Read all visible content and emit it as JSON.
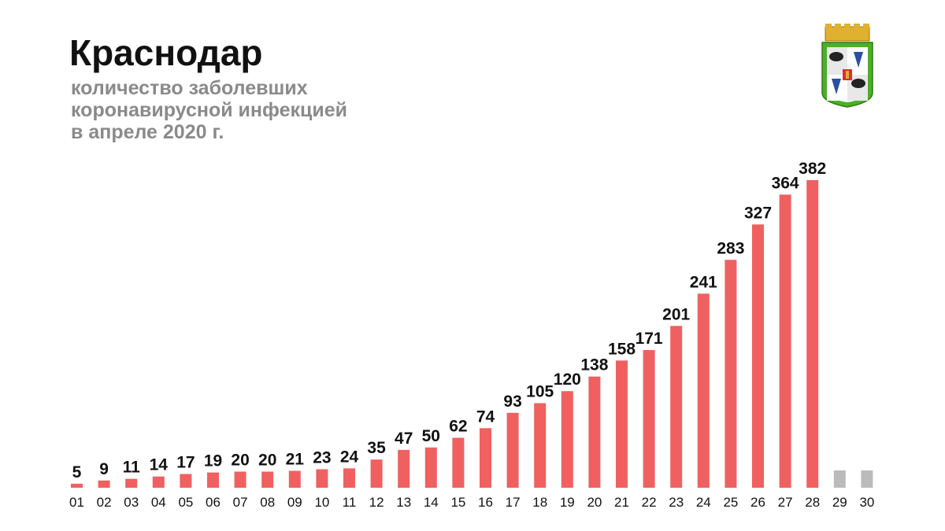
{
  "header": {
    "title": "Краснодар",
    "subtitle_lines": [
      "количество заболевших",
      "коронавирусной инфекцией",
      "в апреле 2020 г."
    ]
  },
  "crest": {
    "icon": "krasnodar-coat-of-arms-icon"
  },
  "colors": {
    "bar": "#f06060",
    "future_bar": "#bbbbbb",
    "text": "#111111",
    "subtitle": "#8a8a8a"
  },
  "chart_data": {
    "type": "bar",
    "categories": [
      "01",
      "02",
      "03",
      "04",
      "05",
      "06",
      "07",
      "08",
      "09",
      "10",
      "11",
      "12",
      "13",
      "14",
      "15",
      "16",
      "17",
      "18",
      "19",
      "20",
      "21",
      "22",
      "23",
      "24",
      "25",
      "26",
      "27",
      "28",
      "29",
      "30"
    ],
    "values": [
      5,
      9,
      11,
      14,
      17,
      19,
      20,
      20,
      21,
      23,
      24,
      35,
      47,
      50,
      62,
      74,
      93,
      105,
      120,
      138,
      158,
      171,
      201,
      241,
      283,
      327,
      364,
      382,
      null,
      null
    ],
    "future_categories": [
      "29",
      "30"
    ],
    "data_labels": true,
    "ylim": [
      0,
      382
    ],
    "grid": false,
    "legend": "none"
  }
}
